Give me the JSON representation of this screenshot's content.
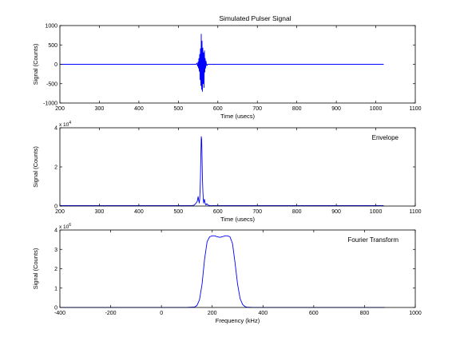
{
  "chart_data": [
    {
      "type": "line",
      "title": "Simulated Pulser Signal",
      "xlabel": "Time (usecs)",
      "ylabel": "Signal (Counts)",
      "annotation": "",
      "exponent": "",
      "xlim": [
        200,
        1100
      ],
      "ylim": [
        -1000,
        1000
      ],
      "xticks": [
        200,
        300,
        400,
        500,
        600,
        700,
        800,
        900,
        1000,
        1100
      ],
      "xtick_labels": [
        "200",
        "300",
        "400",
        "500",
        "600",
        "700",
        "800",
        "900",
        "1000",
        "1100"
      ],
      "yticks": [
        -1000,
        -500,
        0,
        500,
        1000
      ],
      "ytick_labels": [
        "-1000",
        "-500",
        "0",
        "500",
        "1000"
      ],
      "line_color": "#0000ff",
      "series": [
        {
          "x": [
            200,
            545,
            547,
            549,
            550,
            551,
            552,
            553,
            554,
            555,
            556,
            557,
            558,
            559,
            560,
            561,
            562,
            563,
            564,
            565,
            566,
            567,
            568,
            569,
            570,
            572,
            574,
            1020
          ],
          "y": [
            0,
            0,
            30,
            -50,
            60,
            -100,
            150,
            -180,
            260,
            -400,
            400,
            -550,
            780,
            -650,
            600,
            -700,
            420,
            -500,
            300,
            -600,
            350,
            -200,
            150,
            -100,
            80,
            -40,
            0,
            0
          ]
        }
      ]
    },
    {
      "type": "line",
      "title": "",
      "xlabel": "Time (usecs)",
      "ylabel": "Signal (Counts)",
      "annotation": "Envelope",
      "exponent": "x 10",
      "exponent_power": "4",
      "xlim": [
        200,
        1100
      ],
      "ylim": [
        0,
        40000
      ],
      "xticks": [
        200,
        300,
        400,
        500,
        600,
        700,
        800,
        900,
        1000,
        1100
      ],
      "xtick_labels": [
        "200",
        "300",
        "400",
        "500",
        "600",
        "700",
        "800",
        "900",
        "1000",
        "1100"
      ],
      "yticks": [
        0,
        20000,
        40000
      ],
      "ytick_labels": [
        "0",
        "2",
        "4"
      ],
      "line_color": "#0000ff",
      "series": [
        {
          "x": [
            200,
            535,
            540,
            545,
            548,
            550,
            552,
            553,
            554,
            555,
            556,
            557,
            558,
            559,
            560,
            561,
            562,
            563,
            564,
            566,
            568,
            570,
            572,
            575,
            580,
            1020
          ],
          "y": [
            200,
            250,
            500,
            1500,
            2500,
            4800,
            2500,
            1500,
            3500,
            8000,
            15000,
            26000,
            35500,
            34000,
            25000,
            14000,
            8000,
            4000,
            1500,
            3500,
            1200,
            500,
            1200,
            500,
            250,
            200
          ]
        }
      ]
    },
    {
      "type": "line",
      "title": "",
      "xlabel": "Frequency (kHz)",
      "ylabel": "Signal (Counts)",
      "annotation": "Fourier Transform",
      "exponent": "x 10",
      "exponent_power": "6",
      "xlim": [
        -400,
        1000
      ],
      "ylim": [
        0,
        4000000
      ],
      "xticks": [
        -400,
        -200,
        0,
        200,
        400,
        600,
        800,
        1000
      ],
      "xtick_labels": [
        "-400",
        "-200",
        "0",
        "200",
        "400",
        "600",
        "800",
        "1000"
      ],
      "yticks": [
        0,
        1000000,
        2000000,
        3000000,
        4000000
      ],
      "ytick_labels": [
        "0",
        "1",
        "2",
        "3",
        "4"
      ],
      "line_color": "#0000ff",
      "series": [
        {
          "x": [
            -400,
            0,
            100,
            130,
            140,
            150,
            160,
            170,
            180,
            190,
            200,
            210,
            220,
            230,
            240,
            250,
            260,
            270,
            280,
            290,
            300,
            310,
            320,
            330,
            340,
            360,
            400,
            880
          ],
          "y": [
            0,
            0,
            0,
            20000,
            100000,
            400000,
            1200000,
            2500000,
            3400000,
            3650000,
            3700000,
            3700000,
            3650000,
            3620000,
            3650000,
            3700000,
            3700000,
            3650000,
            3300000,
            2300000,
            1200000,
            450000,
            150000,
            40000,
            10000,
            0,
            0,
            0
          ]
        }
      ]
    }
  ]
}
